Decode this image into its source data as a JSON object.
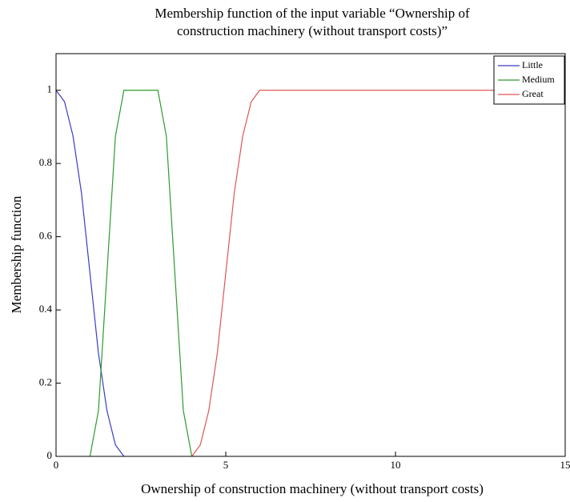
{
  "chart_data": {
    "type": "line",
    "title": [
      "Membership function of the input variable “Ownership of",
      "construction machinery (without transport costs)”"
    ],
    "xlabel": "Ownership of construction machinery (without transport costs)",
    "ylabel": "Membership function",
    "x": [
      0,
      0.25,
      0.5,
      0.75,
      1,
      1.25,
      1.5,
      1.75,
      2,
      2.25,
      2.5,
      2.75,
      3,
      3.25,
      3.5,
      3.75,
      4,
      4.25,
      4.5,
      4.75,
      5,
      5.25,
      5.5,
      5.75,
      6,
      15
    ],
    "series": [
      {
        "name": "Little",
        "color": "#3b3bc8",
        "values": [
          1,
          0.96875,
          0.875,
          0.71875,
          0.5,
          0.28125,
          0.125,
          0.03125,
          0,
          null,
          null,
          null,
          null,
          null,
          null,
          null,
          null,
          null,
          null,
          null,
          null,
          null,
          null,
          null,
          null,
          null
        ]
      },
      {
        "name": "Medium",
        "color": "#2e9a2e",
        "values": [
          null,
          null,
          null,
          null,
          0,
          0.125,
          0.5,
          0.875,
          1,
          1,
          1,
          1,
          1,
          0.875,
          0.5,
          0.125,
          0,
          null,
          null,
          null,
          null,
          null,
          null,
          null,
          null,
          null
        ]
      },
      {
        "name": "Great",
        "color": "#e05555",
        "values": [
          null,
          null,
          null,
          null,
          null,
          null,
          null,
          null,
          null,
          null,
          null,
          null,
          null,
          null,
          null,
          null,
          0,
          0.03125,
          0.125,
          0.28125,
          0.5,
          0.71875,
          0.875,
          0.96875,
          1,
          1
        ]
      }
    ],
    "xlim": [
      0,
      15
    ],
    "xticks": [
      0,
      5,
      10,
      15
    ],
    "ylim": [
      0,
      1.1
    ],
    "yticks": [
      0,
      0.2,
      0.4,
      0.6,
      0.8,
      1
    ],
    "legend": "upper right"
  }
}
